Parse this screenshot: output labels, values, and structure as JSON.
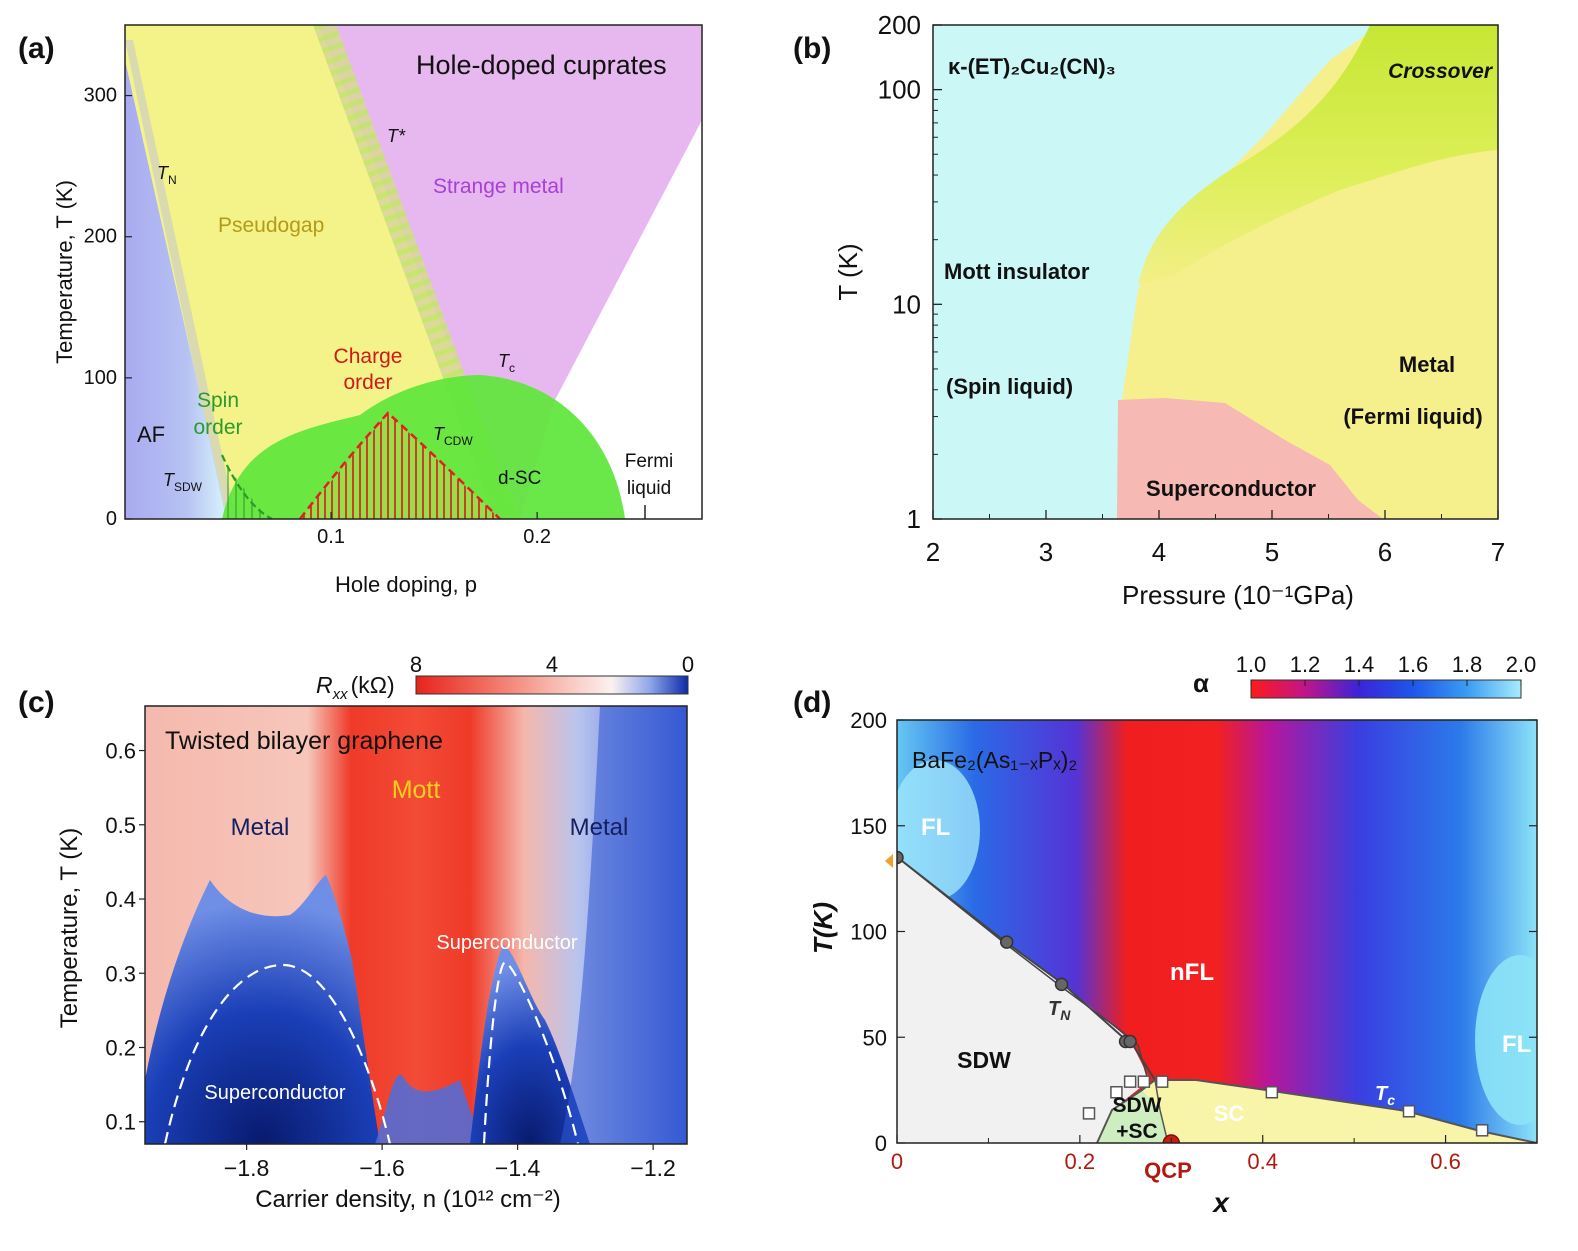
{
  "panels": {
    "a": {
      "label": "(a)"
    },
    "b": {
      "label": "(b)"
    },
    "c": {
      "label": "(c)"
    },
    "d": {
      "label": "(d)"
    }
  },
  "colors": {
    "af": "#a9b2f2",
    "pseudogap": "#f3f38a",
    "strange_metal": "#e7b8ef",
    "dsc": "#5ee63a",
    "charge_order": "#e02020",
    "spin_liquid": "#ccf7f7",
    "metal_b": "#f6f08c",
    "crossover": "#c7e93a",
    "superconductor_b": "#f7b9b3",
    "rxx_high": "#e8231c",
    "rxx_low": "#0a1d8a",
    "alpha_low": "#ff1a1a",
    "alpha_mid": "#1f4fe0",
    "alpha_high": "#8fe6f8",
    "sdw_region": "#f1f1f2",
    "sc_region": "#f8f5a8"
  },
  "chart_data": [
    {
      "panel": "a",
      "type": "area",
      "title": "Hole-doped cuprates",
      "xlabel": "Hole doping, p",
      "ylabel": "Temperature, T (K)",
      "xlim": [
        0,
        0.28
      ],
      "ylim": [
        0,
        350
      ],
      "x_ticks": [
        "0.1",
        "0.2"
      ],
      "y_ticks": [
        "0",
        "100",
        "200",
        "300"
      ],
      "grid": false,
      "regions": [
        {
          "name": "AF",
          "label": "AF"
        },
        {
          "name": "Pseudogap",
          "label": "Pseudogap"
        },
        {
          "name": "Strange metal",
          "label": "Strange metal"
        },
        {
          "name": "Charge order",
          "label_lines": [
            "Charge",
            "order"
          ]
        },
        {
          "name": "Spin order",
          "label_lines": [
            "Spin",
            "order"
          ]
        },
        {
          "name": "d-SC",
          "label": "d-SC"
        },
        {
          "name": "Fermi liquid",
          "label_lines": [
            "Fermi",
            "liquid"
          ]
        }
      ],
      "lines": [
        {
          "name": "T_N",
          "label": "T",
          "sub": "N",
          "points": [
            [
              0.0,
              330
            ],
            [
              0.05,
              0
            ]
          ]
        },
        {
          "name": "T*",
          "label": "T*",
          "points": [
            [
              0.09,
              350
            ],
            [
              0.19,
              0
            ]
          ]
        },
        {
          "name": "T_c",
          "label": "T",
          "sub": "c",
          "peak": [
            0.17,
            102
          ],
          "range": [
            0.05,
            0.24
          ]
        },
        {
          "name": "T_CDW",
          "label": "T",
          "sub": "CDW",
          "peak": [
            0.13,
            75
          ],
          "range": [
            0.085,
            0.175
          ]
        },
        {
          "name": "T_SDW",
          "label": "T",
          "sub": "SDW",
          "points": [
            [
              0.045,
              50
            ],
            [
              0.07,
              0
            ]
          ]
        }
      ]
    },
    {
      "panel": "b",
      "type": "area",
      "title": "κ-(ET)₂Cu₂(CN)₃",
      "xlabel": "Pressure (10⁻¹GPa)",
      "ylabel": "T (K)",
      "xlim": [
        2,
        7
      ],
      "ylim": [
        1,
        200
      ],
      "y_scale": "log",
      "x_ticks": [
        "2",
        "3",
        "4",
        "5",
        "6",
        "7"
      ],
      "y_ticks": [
        "1",
        "10",
        "100",
        "200"
      ],
      "grid": false,
      "regions": [
        {
          "name": "Mott insulator (Spin liquid)",
          "label_lines": [
            "Mott insulator",
            "(Spin liquid)"
          ]
        },
        {
          "name": "Metal (Fermi liquid)",
          "label_lines": [
            "Metal",
            "(Fermi liquid)"
          ]
        },
        {
          "name": "Crossover",
          "label": "Crossover"
        },
        {
          "name": "Superconductor",
          "label": "Superconductor"
        }
      ],
      "boundary_mott": [
        [
          3.62,
          1
        ],
        [
          3.7,
          3.6
        ],
        [
          3.8,
          13
        ],
        [
          4.3,
          40
        ],
        [
          5.2,
          110
        ],
        [
          5.8,
          200
        ]
      ],
      "sc_dome": [
        [
          3.62,
          3.6
        ],
        [
          4.05,
          3.7
        ],
        [
          4.6,
          3.0
        ],
        [
          5.5,
          1.8
        ],
        [
          5.95,
          1
        ]
      ]
    },
    {
      "panel": "c",
      "type": "heatmap",
      "title": "Twisted bilayer graphene",
      "xlabel": "Carrier density, n (10¹² cm⁻²)",
      "ylabel": "Temperature, T (K)",
      "xlim": [
        -1.95,
        -1.15
      ],
      "ylim": [
        0.07,
        0.66
      ],
      "x_ticks": [
        "−1.8",
        "−1.6",
        "−1.4",
        "−1.2"
      ],
      "y_ticks": [
        "0.1",
        "0.2",
        "0.3",
        "0.4",
        "0.5",
        "0.6"
      ],
      "colorbar": {
        "label": "R",
        "label_sub": "xx",
        "unit": "(kΩ)",
        "ticks": [
          "8",
          "4",
          "0"
        ],
        "range": [
          0,
          8
        ]
      },
      "grid": false,
      "regions": [
        {
          "name": "Mott",
          "label": "Mott"
        },
        {
          "name": "Metal left",
          "label": "Metal"
        },
        {
          "name": "Metal right",
          "label": "Metal"
        },
        {
          "name": "Superconductor left",
          "label": "Superconductor"
        },
        {
          "name": "Superconductor right",
          "label": "Superconductor"
        }
      ],
      "sc_domes": [
        {
          "center": -1.76,
          "top": 0.32,
          "left": -1.93,
          "right": -1.62
        },
        {
          "center": -1.43,
          "top": 0.32,
          "left": -1.47,
          "right": -1.36
        }
      ]
    },
    {
      "panel": "d",
      "type": "heatmap",
      "title": "BaFe₂(As₁₋ₓPₓ)₂",
      "xlabel": "x",
      "ylabel": "T(K)",
      "xlim": [
        0,
        0.7
      ],
      "ylim": [
        0,
        200
      ],
      "x_ticks": [
        "0",
        "0.2",
        "0.4",
        "0.6"
      ],
      "y_ticks": [
        "0",
        "50",
        "100",
        "150",
        "200"
      ],
      "colorbar": {
        "label": "α",
        "ticks": [
          "1.0",
          "1.2",
          "1.4",
          "1.6",
          "1.8",
          "2.0"
        ],
        "range": [
          1.0,
          2.0
        ]
      },
      "grid": false,
      "regions": [
        {
          "name": "FL left",
          "label": "FL"
        },
        {
          "name": "FL right",
          "label": "FL"
        },
        {
          "name": "nFL",
          "label": "nFL"
        },
        {
          "name": "SDW",
          "label": "SDW"
        },
        {
          "name": "SDW+SC",
          "label_lines": [
            "SDW",
            "+SC"
          ]
        },
        {
          "name": "SC",
          "label": "SC"
        },
        {
          "name": "QCP",
          "label": "QCP"
        }
      ],
      "series": [
        {
          "name": "T_N",
          "label": "T",
          "sub": "N",
          "x": [
            0.0,
            0.12,
            0.18,
            0.25,
            0.255,
            0.27
          ],
          "y": [
            135,
            95,
            75,
            48,
            48,
            28
          ]
        },
        {
          "name": "T_c",
          "label": "T",
          "sub": "c",
          "x": [
            0.21,
            0.24,
            0.255,
            0.27,
            0.29,
            0.41,
            0.56,
            0.64,
            0.7
          ],
          "y": [
            14,
            24,
            29,
            29,
            29,
            24,
            15,
            6,
            0
          ]
        }
      ],
      "qcp": [
        0.3,
        0
      ]
    }
  ]
}
